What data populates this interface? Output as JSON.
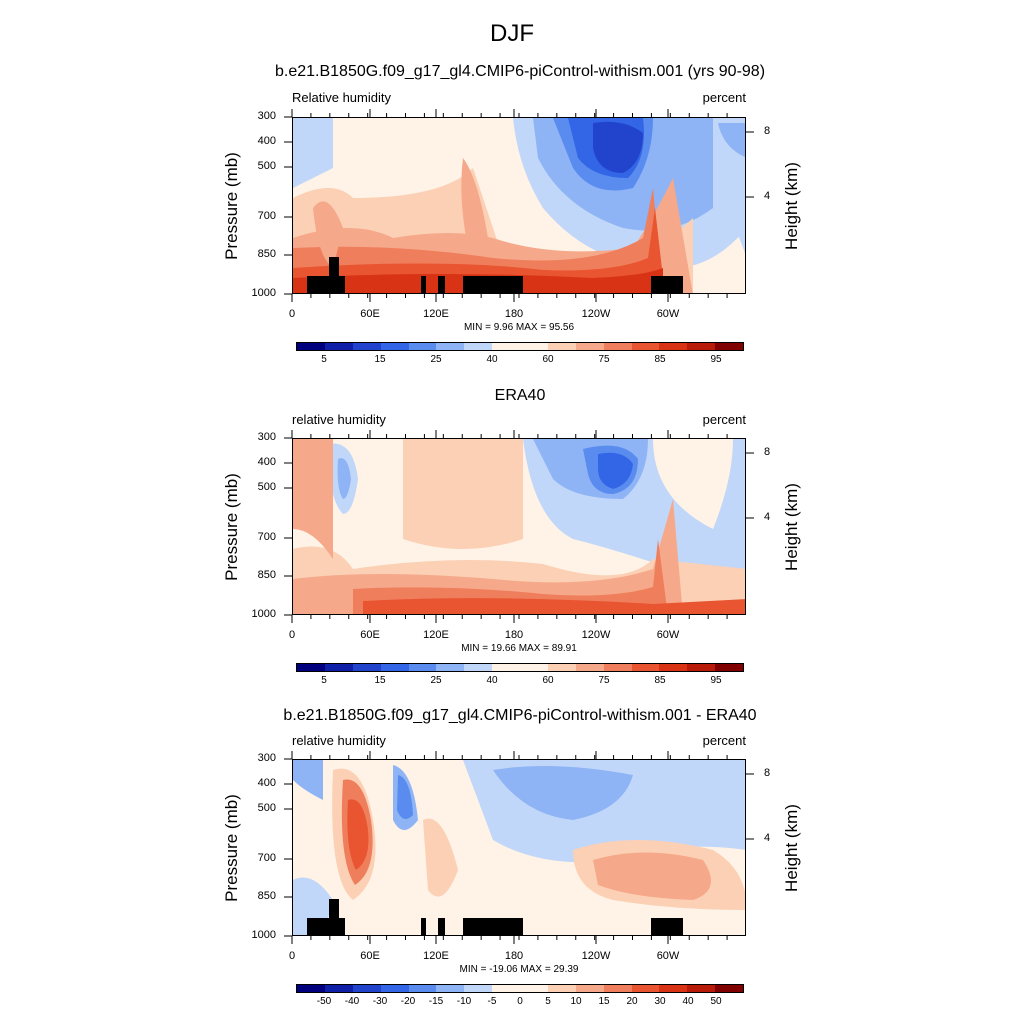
{
  "page": {
    "title": "DJF"
  },
  "colors": {
    "sequential": [
      "#00007f",
      "#0f1fa8",
      "#2244cc",
      "#3366e6",
      "#5a8cf0",
      "#8fb4f5",
      "#c1d7fa",
      "#fff2e6",
      "#fbd0b5",
      "#f5a98a",
      "#ef7e5d",
      "#e85530",
      "#d83315",
      "#b81b0a",
      "#800000"
    ],
    "diverging": [
      "#00007f",
      "#0f1fa8",
      "#2244cc",
      "#3366e6",
      "#5a8cf0",
      "#8fb4f5",
      "#c1d7fa",
      "#fff2e6",
      "#fbd0b5",
      "#f5a98a",
      "#ef7e5d",
      "#e85530",
      "#d83315",
      "#b81b0a",
      "#800000"
    ],
    "topography": "#000000"
  },
  "chart_data": [
    {
      "type": "heatmap",
      "title": "b.e21.B1850G.f09_g17_gl4.CMIP6-piControl-withism.001 (yrs 90-98)",
      "variable_label": "Relative humidity",
      "units_label": "percent",
      "ylabel": "Pressure (mb)",
      "ylabel_right": "Height (km)",
      "xticks": [
        "0",
        "60E",
        "120E",
        "180",
        "120W",
        "60W"
      ],
      "yticks": [
        "300",
        "400",
        "500",
        "700",
        "850",
        "1000"
      ],
      "yticks_right": [
        "8",
        "4"
      ],
      "stats": "MIN =   9.96  MAX =  95.56",
      "min": 9.96,
      "max": 95.56,
      "colorbar_labels": [
        "5",
        "15",
        "25",
        "40",
        "60",
        "75",
        "85",
        "95"
      ],
      "has_topography": true
    },
    {
      "type": "heatmap",
      "title": "ERA40",
      "variable_label": "relative humidity",
      "units_label": "percent",
      "ylabel": "Pressure (mb)",
      "ylabel_right": "Height (km)",
      "xticks": [
        "0",
        "60E",
        "120E",
        "180",
        "120W",
        "60W"
      ],
      "yticks": [
        "300",
        "400",
        "500",
        "700",
        "850",
        "1000"
      ],
      "yticks_right": [
        "8",
        "4"
      ],
      "stats": "MIN =  19.66  MAX =  89.91",
      "min": 19.66,
      "max": 89.91,
      "colorbar_labels": [
        "5",
        "15",
        "25",
        "40",
        "60",
        "75",
        "85",
        "95"
      ],
      "has_topography": false
    },
    {
      "type": "heatmap",
      "title": "b.e21.B1850G.f09_g17_gl4.CMIP6-piControl-withism.001 - ERA40",
      "variable_label": "relative humidity",
      "units_label": "percent",
      "ylabel": "Pressure (mb)",
      "ylabel_right": "Height (km)",
      "xticks": [
        "0",
        "60E",
        "120E",
        "180",
        "120W",
        "60W"
      ],
      "yticks": [
        "300",
        "400",
        "500",
        "700",
        "850",
        "1000"
      ],
      "yticks_right": [
        "8",
        "4"
      ],
      "stats": "MIN = -19.06  MAX =  29.39",
      "min": -19.06,
      "max": 29.39,
      "colorbar_labels": [
        "-50",
        "-40",
        "-30",
        "-20",
        "-15",
        "-10",
        "-5",
        "0",
        "5",
        "10",
        "15",
        "20",
        "30",
        "40",
        "50"
      ],
      "has_topography": true
    }
  ]
}
